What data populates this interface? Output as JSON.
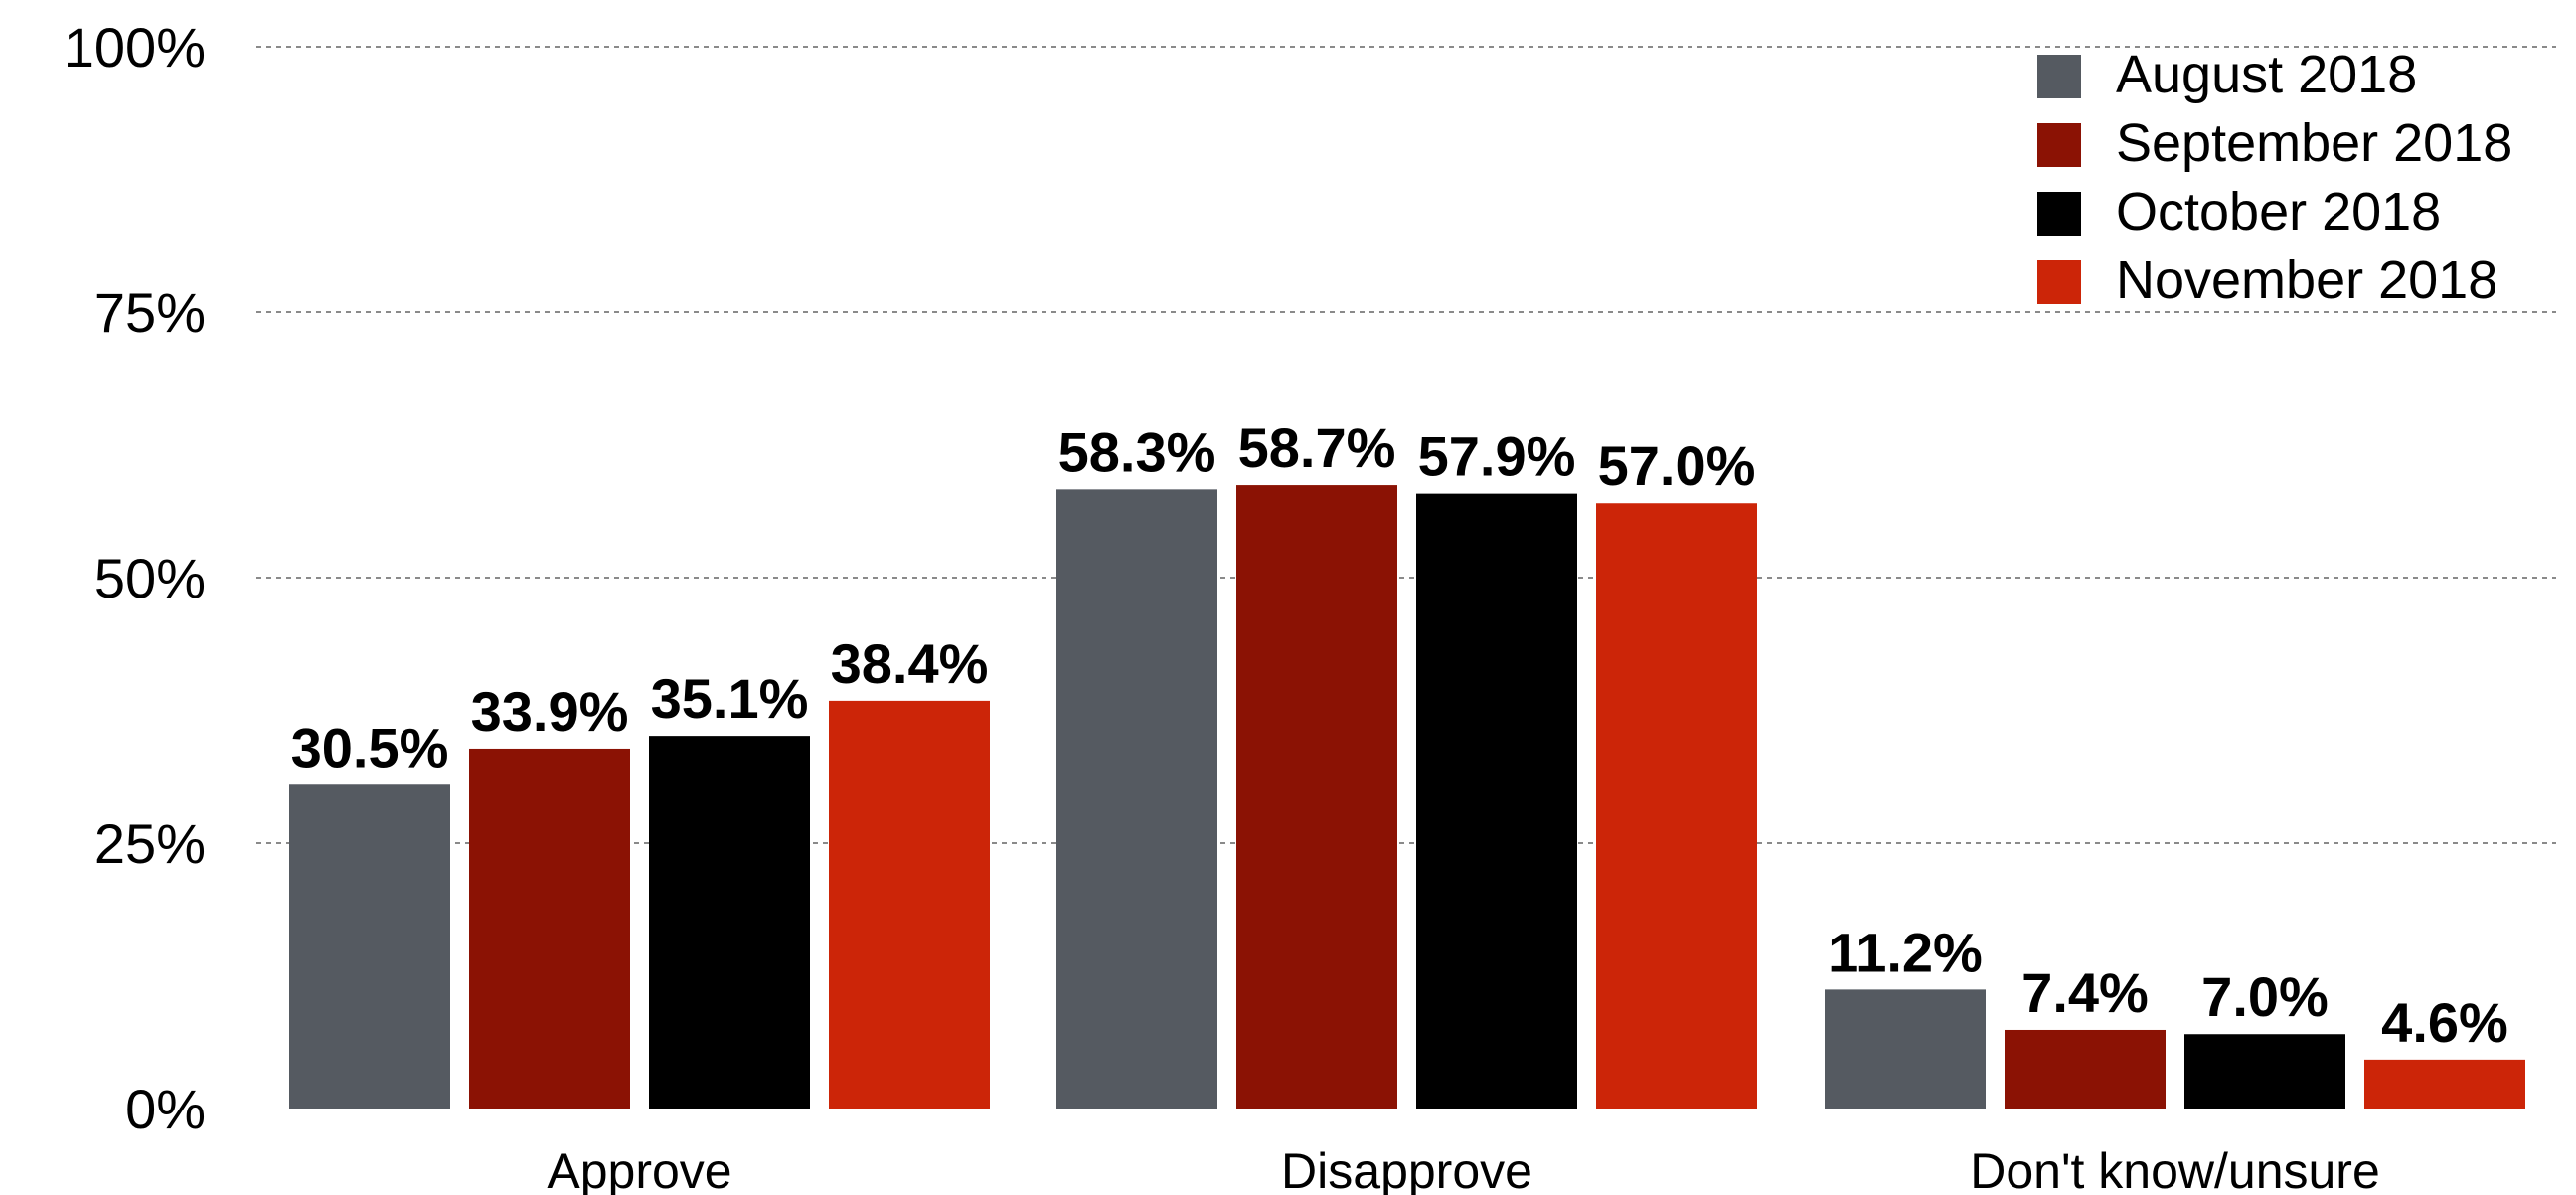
{
  "chart_data": {
    "type": "bar",
    "categories": [
      "Approve",
      "Disapprove",
      "Don't know/unsure"
    ],
    "series": [
      {
        "name": "August 2018",
        "color": "#555a61",
        "values": [
          30.5,
          58.3,
          11.2
        ],
        "labels": [
          "30.5%",
          "58.3%",
          "11.2%"
        ]
      },
      {
        "name": "September 2018",
        "color": "#8b1204",
        "values": [
          33.9,
          58.7,
          7.4
        ],
        "labels": [
          "33.9%",
          "58.7%",
          "7.4%"
        ]
      },
      {
        "name": "October 2018",
        "color": "#000000",
        "values": [
          35.1,
          57.9,
          7.0
        ],
        "labels": [
          "35.1%",
          "57.9%",
          "7.0%"
        ]
      },
      {
        "name": "November 2018",
        "color": "#cc2508",
        "values": [
          38.4,
          57.0,
          4.6
        ],
        "labels": [
          "38.4%",
          "57.0%",
          "4.6%"
        ]
      }
    ],
    "ylim": [
      0,
      100
    ],
    "yticks": [
      0,
      25,
      50,
      75,
      100
    ],
    "ytick_labels": [
      "0%",
      "25%",
      "50%",
      "75%",
      "100%"
    ],
    "grid": true,
    "legend_position": "top-right"
  }
}
